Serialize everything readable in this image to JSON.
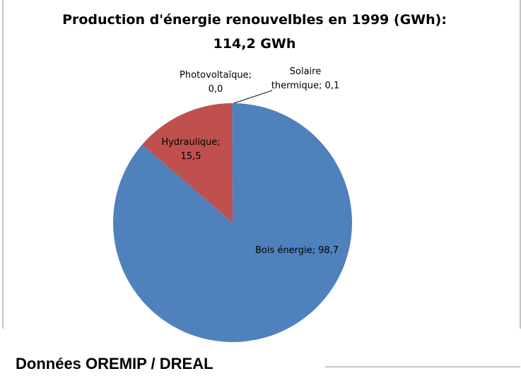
{
  "chart_data": {
    "type": "pie",
    "title": "Production d'énergie renouvelbles en 1999 (GWh):",
    "subtitle": "114,2 GWh",
    "values": [
      98.7,
      15.5,
      0.0,
      0.1
    ],
    "value_labels": [
      [
        "Bois énergie; 98,7"
      ],
      [
        "Hydraulique;",
        "15,5"
      ],
      [
        "Photovoltaïque;",
        "0,0"
      ],
      [
        "Solaire",
        "thermique; 0,1"
      ]
    ],
    "colors": [
      "#4f81bd",
      "#c0504d",
      "#9bbb59",
      "#8064a2"
    ]
  },
  "footer": "Données OREMIP / DREAL"
}
